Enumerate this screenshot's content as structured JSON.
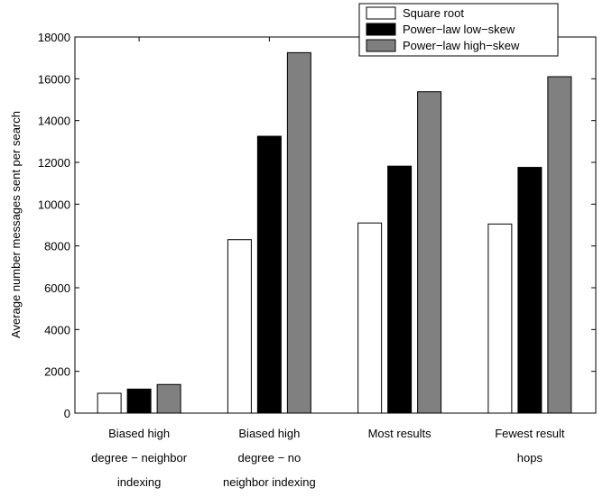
{
  "chart_data": {
    "type": "bar",
    "title": "",
    "xlabel": "",
    "ylabel": "Average number messages sent per search",
    "ylim": [
      0,
      18000
    ],
    "yticks": [
      0,
      2000,
      4000,
      6000,
      8000,
      10000,
      12000,
      14000,
      16000,
      18000
    ],
    "categories": [
      [
        "Biased high",
        "degree − neighbor",
        "indexing"
      ],
      [
        "Biased high",
        "degree − no",
        "neighbor indexing"
      ],
      [
        "Most results"
      ],
      [
        "Fewest result",
        "hops"
      ]
    ],
    "series": [
      {
        "name": "Square root",
        "color": "#ffffff",
        "values": [
          950,
          8300,
          9100,
          9050
        ]
      },
      {
        "name": "Power−law low−skew",
        "color": "#000000",
        "values": [
          1150,
          13250,
          11820,
          11760
        ]
      },
      {
        "name": "Power−law high−skew",
        "color": "#808080",
        "values": [
          1370,
          17250,
          15380,
          16100
        ]
      }
    ],
    "grid": false,
    "legend": "top-right"
  }
}
